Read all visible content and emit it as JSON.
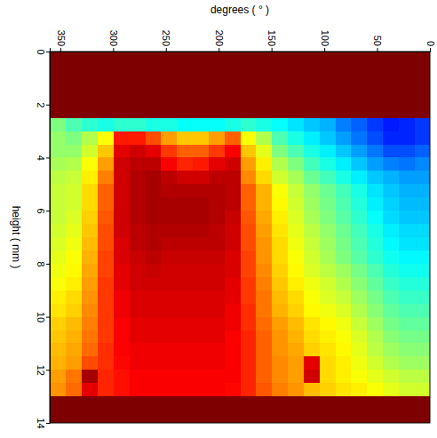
{
  "chart_data": {
    "type": "heatmap",
    "x_label": "degrees ( ° )",
    "y_label": "height ( mm )",
    "xlim": [
      360,
      0
    ],
    "ylim": [
      0,
      14
    ],
    "xticks": [
      350,
      300,
      250,
      200,
      150,
      100,
      50,
      0
    ],
    "yticks": [
      0,
      2,
      4,
      6,
      8,
      10,
      12,
      14
    ],
    "x_bins": [
      0,
      15,
      30,
      45,
      60,
      75,
      90,
      105,
      120,
      135,
      150,
      165,
      180,
      195,
      210,
      225,
      240,
      255,
      270,
      285,
      300,
      315,
      330,
      345,
      360
    ],
    "y_bins": [
      0,
      0.5,
      1,
      1.5,
      2,
      2.5,
      3,
      3.5,
      4,
      4.5,
      5,
      5.5,
      6,
      6.5,
      7,
      7.5,
      8,
      8.5,
      9,
      9.5,
      10,
      10.5,
      11,
      11.5,
      12,
      12.5,
      13,
      13.5,
      14
    ],
    "color": "jet",
    "color_range": [
      0,
      100
    ],
    "values": [
      [
        100,
        100,
        100,
        100,
        100,
        100,
        100,
        100,
        100,
        100,
        100,
        100,
        100,
        100,
        100,
        100,
        100,
        100,
        100,
        100,
        100,
        100,
        100,
        100
      ],
      [
        100,
        100,
        100,
        100,
        100,
        100,
        100,
        100,
        100,
        100,
        100,
        100,
        100,
        100,
        100,
        100,
        100,
        100,
        100,
        100,
        100,
        100,
        100,
        100
      ],
      [
        100,
        100,
        100,
        100,
        100,
        100,
        100,
        100,
        100,
        100,
        100,
        100,
        100,
        100,
        100,
        100,
        100,
        100,
        100,
        100,
        100,
        100,
        100,
        100
      ],
      [
        100,
        100,
        100,
        100,
        100,
        100,
        100,
        100,
        100,
        100,
        100,
        100,
        100,
        100,
        100,
        100,
        100,
        100,
        100,
        100,
        100,
        100,
        100,
        100
      ],
      [
        100,
        100,
        100,
        100,
        100,
        100,
        100,
        100,
        100,
        100,
        100,
        100,
        100,
        100,
        100,
        100,
        100,
        100,
        100,
        100,
        100,
        100,
        100,
        100
      ],
      [
        18,
        16,
        15,
        18,
        22,
        25,
        30,
        32,
        35,
        38,
        40,
        42,
        40,
        38,
        38,
        38,
        40,
        40,
        42,
        42,
        40,
        42,
        45,
        50
      ],
      [
        18,
        16,
        16,
        20,
        24,
        28,
        32,
        36,
        40,
        45,
        55,
        62,
        78,
        72,
        68,
        68,
        72,
        80,
        85,
        85,
        62,
        55,
        50,
        52
      ],
      [
        22,
        20,
        20,
        24,
        28,
        32,
        36,
        40,
        45,
        50,
        60,
        68,
        88,
        82,
        78,
        78,
        82,
        90,
        92,
        90,
        68,
        58,
        52,
        52
      ],
      [
        26,
        24,
        25,
        28,
        32,
        36,
        40,
        44,
        50,
        55,
        64,
        72,
        92,
        90,
        85,
        84,
        88,
        94,
        94,
        92,
        72,
        62,
        55,
        54
      ],
      [
        28,
        28,
        30,
        32,
        36,
        40,
        44,
        48,
        54,
        58,
        66,
        74,
        94,
        94,
        92,
        92,
        94,
        96,
        95,
        92,
        75,
        64,
        57,
        56
      ],
      [
        30,
        30,
        32,
        35,
        40,
        44,
        48,
        52,
        57,
        62,
        70,
        78,
        94,
        95,
        95,
        95,
        95,
        96,
        95,
        92,
        78,
        66,
        58,
        57
      ],
      [
        31,
        31,
        33,
        36,
        41,
        45,
        49,
        53,
        58,
        63,
        70,
        78,
        94,
        95,
        96,
        96,
        96,
        96,
        95,
        92,
        78,
        66,
        58,
        57
      ],
      [
        32,
        32,
        34,
        38,
        42,
        46,
        50,
        54,
        59,
        64,
        71,
        79,
        93,
        95,
        96,
        96,
        96,
        96,
        95,
        92,
        79,
        67,
        59,
        57
      ],
      [
        34,
        34,
        36,
        40,
        44,
        48,
        52,
        56,
        60,
        65,
        72,
        80,
        92,
        94,
        95,
        95,
        95,
        95,
        94,
        92,
        80,
        68,
        60,
        58
      ],
      [
        35,
        35,
        37,
        41,
        45,
        49,
        53,
        57,
        61,
        66,
        73,
        80,
        92,
        94,
        94,
        94,
        94,
        95,
        94,
        91,
        80,
        69,
        61,
        59
      ],
      [
        37,
        37,
        39,
        42,
        46,
        50,
        54,
        58,
        62,
        66,
        73,
        81,
        91,
        93,
        93,
        93,
        93,
        94,
        93,
        91,
        81,
        70,
        62,
        60
      ],
      [
        39,
        39,
        41,
        45,
        49,
        53,
        56,
        59,
        63,
        67,
        74,
        81,
        91,
        92,
        92,
        92,
        92,
        93,
        92,
        90,
        81,
        71,
        63,
        61
      ],
      [
        41,
        41,
        43,
        47,
        51,
        55,
        58,
        61,
        64,
        68,
        75,
        82,
        90,
        92,
        92,
        92,
        92,
        92,
        92,
        90,
        82,
        72,
        64,
        62
      ],
      [
        43,
        43,
        45,
        49,
        53,
        57,
        59,
        62,
        66,
        69,
        76,
        82,
        90,
        91,
        91,
        91,
        91,
        91,
        91,
        89,
        82,
        73,
        66,
        64
      ],
      [
        45,
        45,
        47,
        51,
        55,
        59,
        61,
        63,
        67,
        70,
        76,
        83,
        89,
        91,
        91,
        91,
        91,
        91,
        91,
        89,
        82,
        74,
        67,
        65
      ],
      [
        47,
        47,
        49,
        53,
        57,
        61,
        63,
        65,
        69,
        72,
        77,
        83,
        89,
        90,
        90,
        90,
        90,
        90,
        90,
        88,
        82,
        75,
        69,
        67
      ],
      [
        49,
        49,
        51,
        55,
        59,
        62,
        64,
        66,
        70,
        73,
        78,
        84,
        88,
        90,
        90,
        90,
        90,
        90,
        90,
        88,
        82,
        76,
        70,
        68
      ],
      [
        51,
        51,
        53,
        56,
        60,
        63,
        65,
        67,
        71,
        73,
        78,
        84,
        88,
        89,
        89,
        89,
        89,
        89,
        89,
        88,
        83,
        77,
        71,
        69
      ],
      [
        53,
        53,
        55,
        58,
        61,
        64,
        66,
        90,
        72,
        74,
        78,
        84,
        88,
        89,
        89,
        89,
        89,
        89,
        89,
        87,
        83,
        80,
        72,
        70
      ],
      [
        56,
        56,
        58,
        60,
        62,
        64,
        66,
        92,
        72,
        74,
        78,
        84,
        88,
        88,
        88,
        88,
        88,
        88,
        88,
        86,
        84,
        96,
        76,
        72
      ],
      [
        58,
        58,
        60,
        62,
        64,
        65,
        67,
        69,
        73,
        75,
        79,
        84,
        87,
        88,
        88,
        88,
        88,
        88,
        88,
        86,
        84,
        90,
        77,
        73
      ],
      [
        100,
        100,
        100,
        100,
        100,
        100,
        100,
        100,
        100,
        100,
        100,
        100,
        100,
        100,
        100,
        100,
        100,
        100,
        100,
        100,
        100,
        100,
        100,
        100
      ],
      [
        100,
        100,
        100,
        100,
        100,
        100,
        100,
        100,
        100,
        100,
        100,
        100,
        100,
        100,
        100,
        100,
        100,
        100,
        100,
        100,
        100,
        100,
        100,
        100
      ]
    ]
  }
}
